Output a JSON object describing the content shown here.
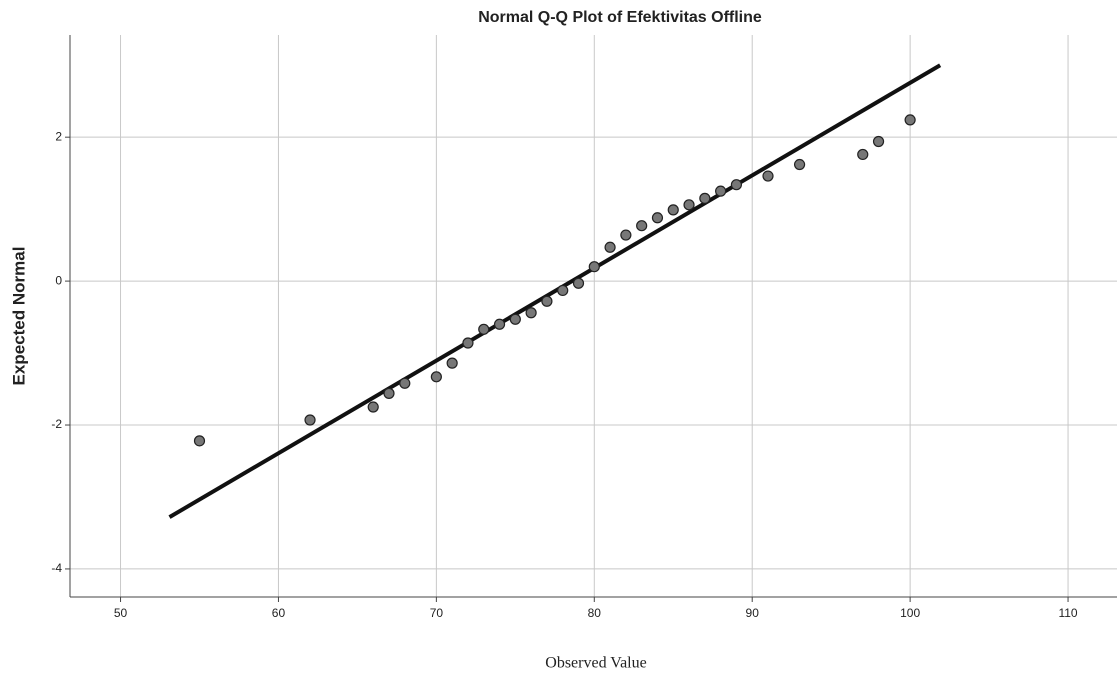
{
  "chart_data": {
    "type": "scatter",
    "title": "Normal Q-Q Plot of Efektivitas Offline",
    "x_label": "Observed Value",
    "y_label": "Expected Normal",
    "x": [
      55,
      62,
      66,
      67,
      68,
      70,
      71,
      72,
      73,
      74,
      75,
      76,
      77,
      78,
      79,
      80,
      81,
      82,
      83,
      84,
      85,
      86,
      87,
      88,
      89,
      91,
      93,
      97,
      98,
      100
    ],
    "values": [
      -2.22,
      -1.93,
      -1.75,
      -1.56,
      -1.42,
      -1.33,
      -1.14,
      -0.86,
      -0.67,
      -0.6,
      -0.53,
      -0.44,
      -0.28,
      -0.13,
      -0.03,
      0.2,
      0.47,
      0.64,
      0.77,
      0.88,
      0.99,
      1.06,
      1.15,
      1.25,
      1.34,
      1.46,
      1.62,
      1.76,
      1.94,
      2.24
    ],
    "color": "#777777",
    "reference_line": {
      "x": [
        53.1,
        101.9
      ],
      "values": [
        -3.28,
        3.0
      ],
      "color": "#111111"
    },
    "xlim": [
      46.8,
      113.1
    ],
    "xticks": [
      50,
      60,
      70,
      80,
      90,
      100,
      110
    ],
    "ylim": [
      -4.39,
      3.42
    ],
    "yticks": [
      -4,
      -2,
      0,
      2
    ],
    "grid": true
  }
}
